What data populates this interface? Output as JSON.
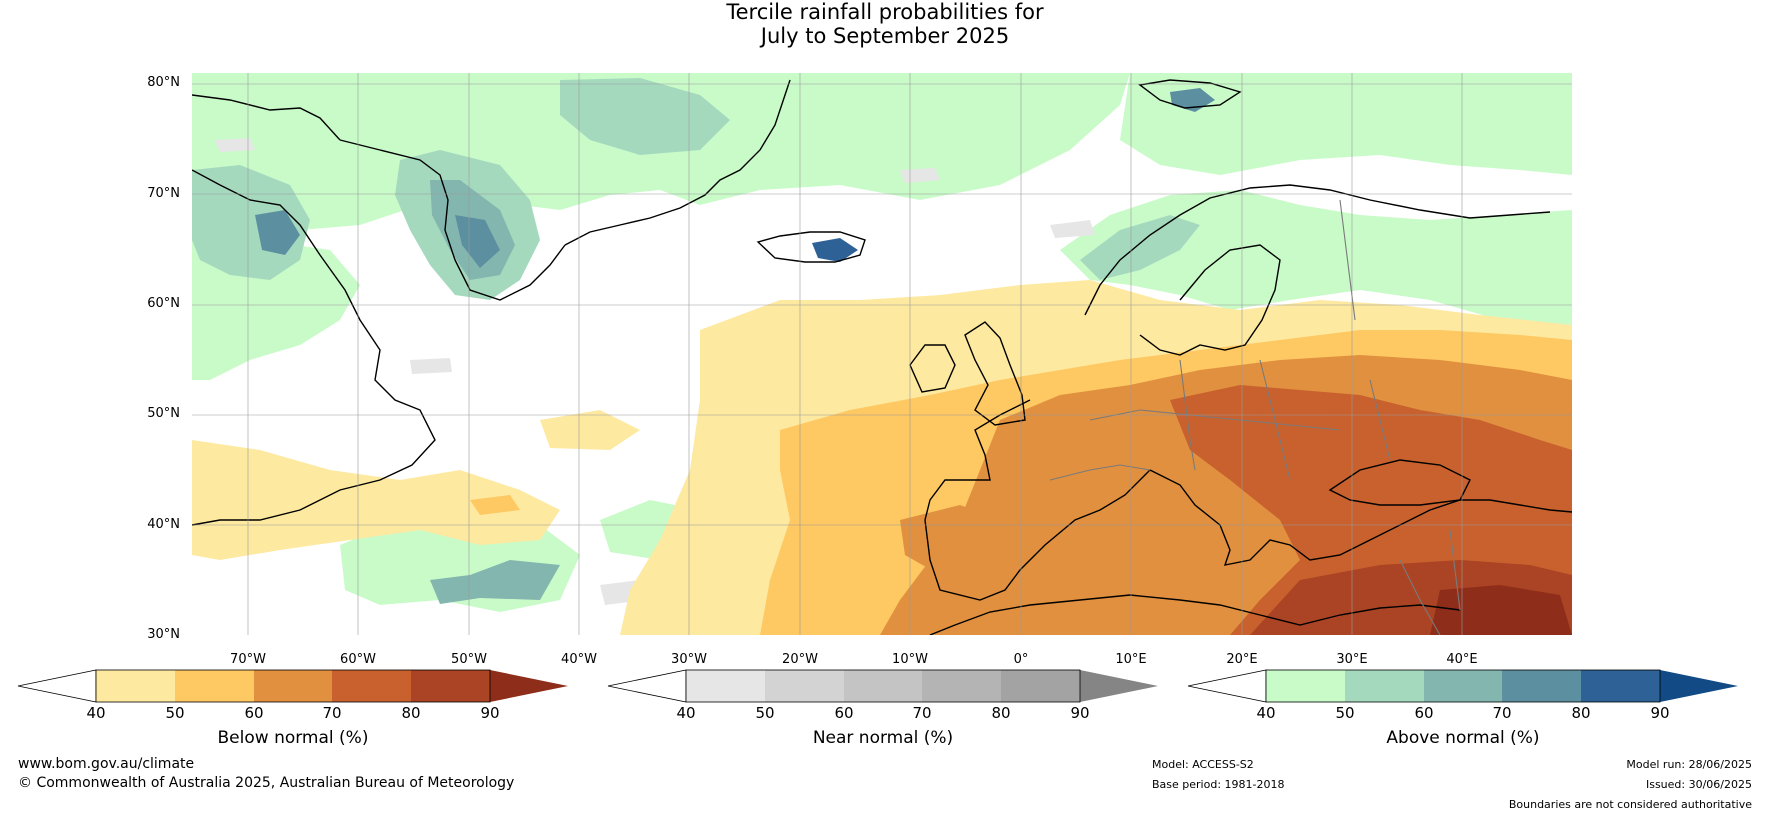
{
  "title": {
    "line1": "Tercile rainfall probabilities for",
    "line2": "July to September 2025"
  },
  "map": {
    "lat_labels": [
      "80°N",
      "70°N",
      "60°N",
      "50°N",
      "40°N",
      "30°N"
    ],
    "lon_labels": [
      "70°W",
      "60°W",
      "50°W",
      "40°W",
      "30°W",
      "20°W",
      "10°W",
      "0°",
      "10°E",
      "20°E",
      "30°E",
      "40°E"
    ],
    "extent": {
      "lon_min": -75,
      "lon_max": 50,
      "lat_min": 30,
      "lat_max": 81
    }
  },
  "colorbars": [
    {
      "label": "Below normal (%)",
      "ticks": [
        "40",
        "50",
        "60",
        "70",
        "80",
        "90"
      ],
      "colors": [
        "#ffffff",
        "#fde9a0",
        "#fec862",
        "#e0903f",
        "#c8612e",
        "#ab4424",
        "#8e2e1a"
      ]
    },
    {
      "label": "Near normal (%)",
      "ticks": [
        "40",
        "50",
        "60",
        "70",
        "80",
        "90"
      ],
      "colors": [
        "#ffffff",
        "#e6e6e6",
        "#d3d3d3",
        "#c4c4c4",
        "#b4b4b4",
        "#a3a3a3",
        "#858585"
      ]
    },
    {
      "label": "Above normal (%)",
      "ticks": [
        "40",
        "50",
        "60",
        "70",
        "80",
        "90"
      ],
      "colors": [
        "#ffffff",
        "#c9fbc9",
        "#a5d9be",
        "#82b6ae",
        "#5c90a0",
        "#2e6296",
        "#124a86"
      ]
    }
  ],
  "footer": {
    "website": "www.bom.gov.au/climate",
    "copyright": "© Commonwealth of Australia 2025, Australian Bureau of Meteorology",
    "model": "Model: ACCESS-S2",
    "base_period": "Base period: 1981-2018",
    "model_run": "Model run: 28/06/2025",
    "issued": "Issued: 30/06/2025",
    "disclaimer": "Boundaries are not considered authoritative"
  }
}
